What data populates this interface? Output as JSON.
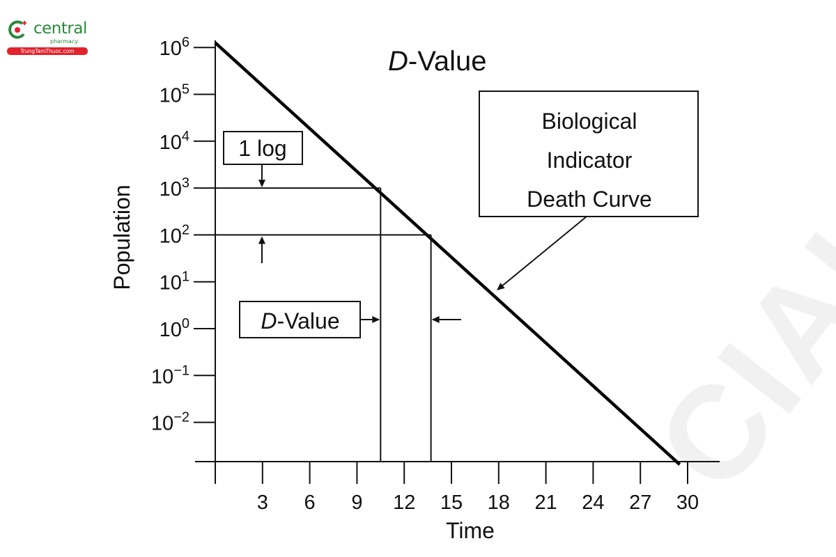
{
  "logo": {
    "name": "central",
    "sub": "pharmacy",
    "url_text": "TrungTamThuoc.com",
    "colors": {
      "green": "#2a8a3a",
      "red": "#e0232d"
    }
  },
  "watermark": {
    "text": "CIAL"
  },
  "chart_data": {
    "type": "line",
    "title": "D-Value",
    "title_emphasis": "D",
    "xlabel": "Time",
    "ylabel": "Population",
    "x_ticks": [
      3,
      6,
      9,
      12,
      15,
      18,
      21,
      24,
      27,
      30
    ],
    "y_ticks": [
      {
        "base": "10",
        "exp": "6"
      },
      {
        "base": "10",
        "exp": "5"
      },
      {
        "base": "10",
        "exp": "4"
      },
      {
        "base": "10",
        "exp": "3"
      },
      {
        "base": "10",
        "exp": "2"
      },
      {
        "base": "10",
        "exp": "1"
      },
      {
        "base": "10",
        "exp": "0"
      },
      {
        "base": "10",
        "exp": "−1"
      },
      {
        "base": "10",
        "exp": "−2"
      }
    ],
    "y_scale": "log",
    "ylim_log10": [
      -2.9,
      6
    ],
    "xlim": [
      0,
      32
    ],
    "series": [
      {
        "values": [
          {
            "x": 0,
            "log10_y": 6.1
          },
          {
            "x": 29.5,
            "log10_y": -2.9
          }
        ]
      }
    ],
    "markers": {
      "level_high_log10": 3,
      "level_low_log10": 2,
      "time_at_high": 10.5,
      "time_at_low": 13.7
    },
    "annotations": {
      "one_log": "1 log",
      "d_value": "D-Value",
      "d_value_emphasis": "D",
      "curve_label_lines": [
        "Biological",
        "Indicator",
        "Death Curve"
      ]
    },
    "grid": false,
    "legend": "none"
  }
}
